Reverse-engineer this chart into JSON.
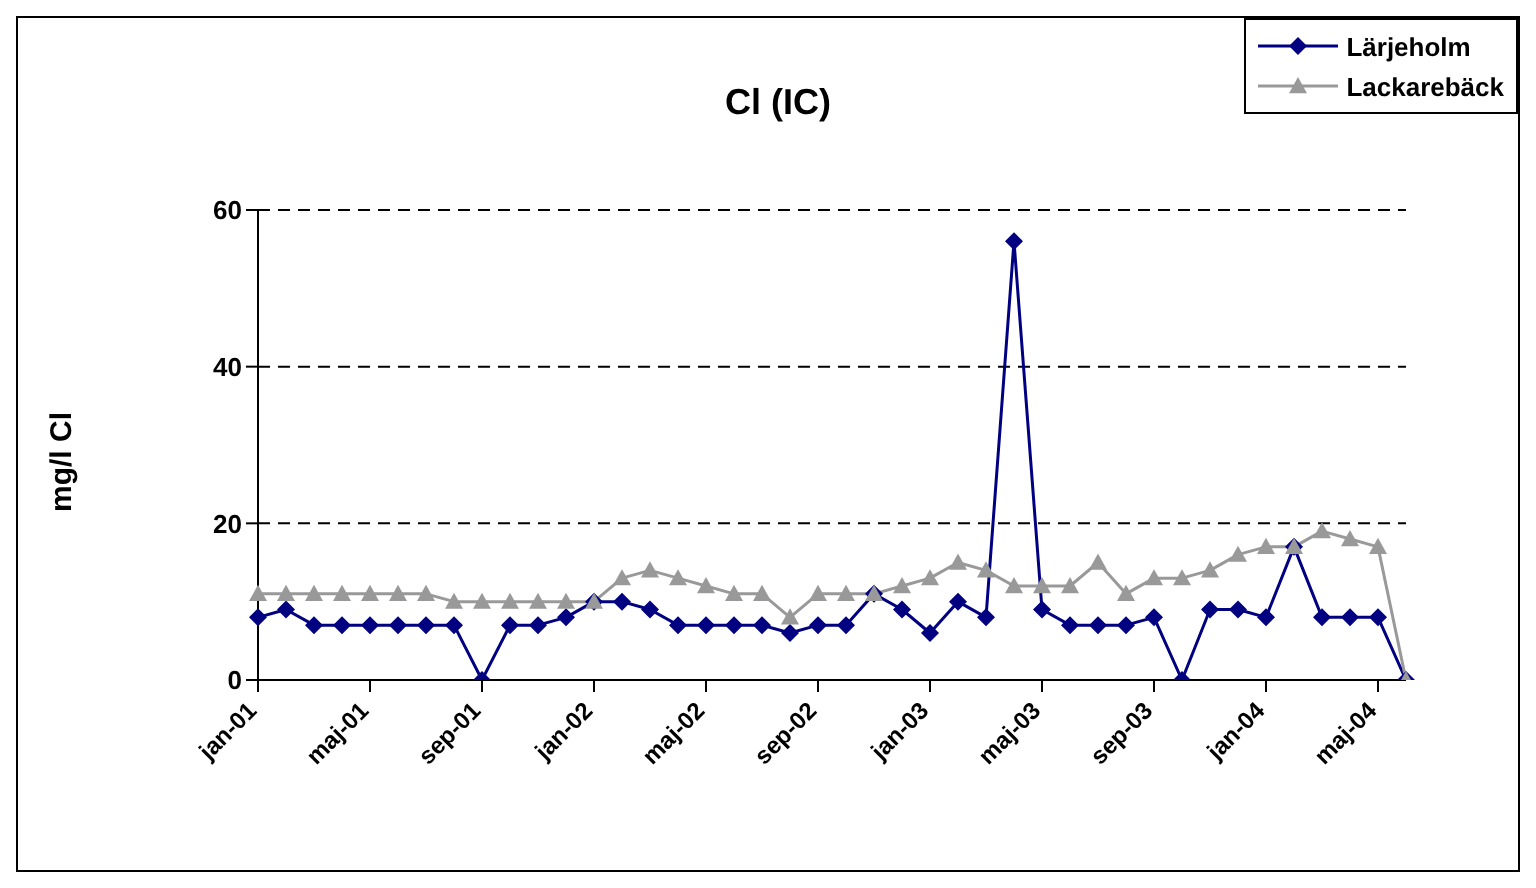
{
  "chart_data": {
    "type": "line",
    "title": "Cl (IC)",
    "ylabel": "mg/l Cl",
    "categories": [
      "jan-01",
      null,
      null,
      null,
      "maj-01",
      null,
      null,
      null,
      "sep-01",
      null,
      null,
      null,
      "jan-02",
      null,
      null,
      null,
      "maj-02",
      null,
      null,
      null,
      "sep-02",
      null,
      null,
      null,
      "jan-03",
      null,
      null,
      null,
      "maj-03",
      null,
      null,
      null,
      "sep-03",
      null,
      null,
      null,
      "jan-04",
      null,
      null,
      null,
      "maj-04",
      null
    ],
    "series": [
      {
        "name": "Lärjeholm",
        "color": "#000080",
        "marker": "diamond",
        "values": [
          8,
          9,
          7,
          7,
          7,
          7,
          7,
          7,
          0,
          7,
          7,
          8,
          10,
          10,
          9,
          7,
          7,
          7,
          7,
          6,
          7,
          7,
          11,
          9,
          6,
          10,
          8,
          56,
          9,
          7,
          7,
          7,
          8,
          0,
          9,
          9,
          8,
          17,
          8,
          8,
          8,
          0
        ]
      },
      {
        "name": "Lackarebäck",
        "color": "#999999",
        "marker": "triangle",
        "values": [
          11,
          11,
          11,
          11,
          11,
          11,
          11,
          10,
          10,
          10,
          10,
          10,
          10,
          13,
          14,
          13,
          12,
          11,
          11,
          8,
          11,
          11,
          11,
          12,
          13,
          15,
          14,
          12,
          12,
          12,
          15,
          11,
          13,
          13,
          14,
          16,
          17,
          17,
          19,
          18,
          17,
          0
        ]
      }
    ],
    "ylim": [
      0,
      60
    ],
    "yticks": [
      0,
      20,
      40,
      60
    ],
    "grid": "y",
    "legend": "top right",
    "line_style": "solid"
  }
}
